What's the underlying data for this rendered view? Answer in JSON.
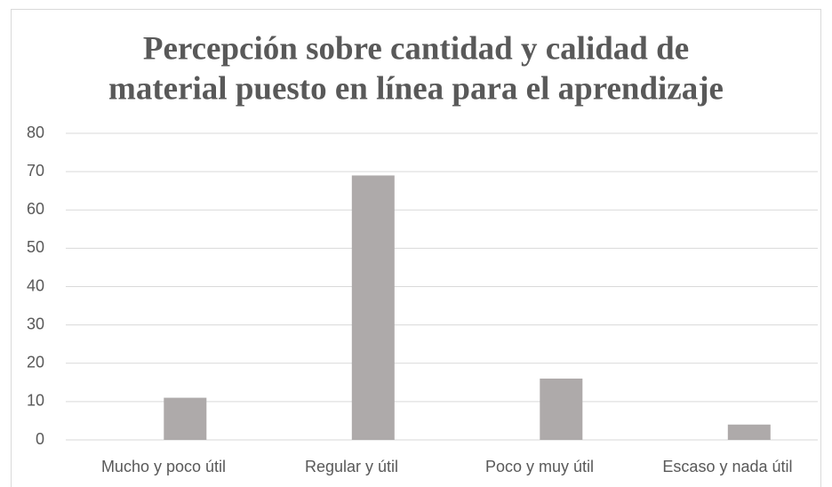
{
  "chart_data": {
    "type": "bar",
    "title": [
      "Percepción sobre cantidad y calidad de",
      "material puesto en línea para el aprendizaje"
    ],
    "categories": [
      "Mucho y poco útil",
      "Regular y útil",
      "Poco y muy útil",
      "Escaso y nada útil"
    ],
    "values": [
      11,
      69,
      16,
      4
    ],
    "color": "#aeaaaa",
    "ylim": [
      0,
      80
    ],
    "yticks": [
      0,
      10,
      20,
      30,
      40,
      50,
      60,
      70,
      80
    ],
    "grid": true
  }
}
